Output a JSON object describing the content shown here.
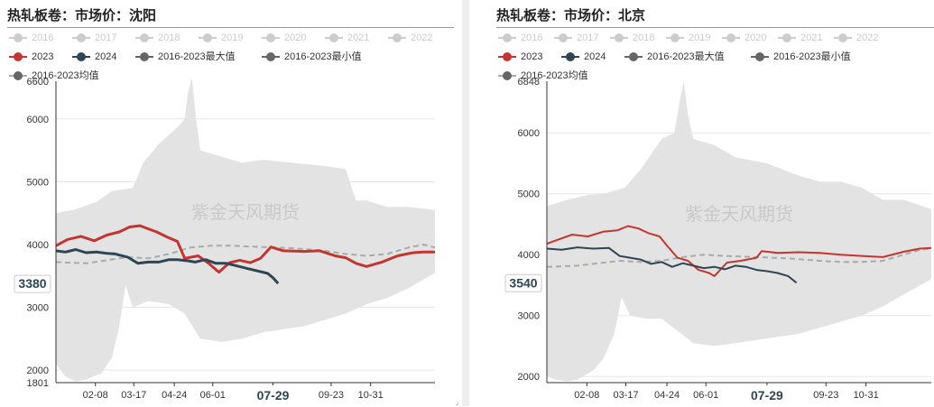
{
  "chart_data": [
    {
      "type": "line",
      "title": "热轧板卷：市场价：沈阳",
      "legend_position": "top",
      "legend_faded": [
        "2016",
        "2017",
        "2018",
        "2019",
        "2020",
        "2021",
        "2022"
      ],
      "legend_active": [
        "2023",
        "2024",
        "2016-2023最大值",
        "2016-2023最小值",
        "2016-2023均值"
      ],
      "xticks": [
        "02-08",
        "03-17",
        "04-24",
        "06-01",
        "07-29",
        "09-23",
        "10-31"
      ],
      "xlim": [
        1,
        366
      ],
      "ylim": [
        1801,
        6600
      ],
      "yticks": [
        2000,
        3000,
        4000,
        5000,
        6000
      ],
      "yaxis_min_label": "1801",
      "yaxis_max_label": "6600",
      "cursor_x_label": "07-29",
      "cursor_y_label": "3380",
      "watermark": "紫金天风期货",
      "grid": true,
      "series": [
        {
          "name": "2016-2023最大值",
          "color": "#e3e3e3",
          "points": [
            [
              1,
              4500
            ],
            [
              20,
              4560
            ],
            [
              40,
              4680
            ],
            [
              55,
              4850
            ],
            [
              75,
              4900
            ],
            [
              85,
              5300
            ],
            [
              100,
              5600
            ],
            [
              120,
              5900
            ],
            [
              125,
              6000
            ],
            [
              128,
              6400
            ],
            [
              132,
              6650
            ],
            [
              136,
              6000
            ],
            [
              140,
              5500
            ],
            [
              160,
              5400
            ],
            [
              180,
              5300
            ],
            [
              200,
              5350
            ],
            [
              230,
              5300
            ],
            [
              260,
              5250
            ],
            [
              280,
              5200
            ],
            [
              290,
              4700
            ],
            [
              300,
              4700
            ],
            [
              320,
              4600
            ],
            [
              340,
              4600
            ],
            [
              366,
              4550
            ]
          ]
        },
        {
          "name": "2016-2023最小值",
          "color": "#e3e3e3",
          "points": [
            [
              1,
              2100
            ],
            [
              10,
              1900
            ],
            [
              20,
              1820
            ],
            [
              30,
              1850
            ],
            [
              45,
              1950
            ],
            [
              55,
              2200
            ],
            [
              62,
              2700
            ],
            [
              68,
              3350
            ],
            [
              75,
              3000
            ],
            [
              90,
              3100
            ],
            [
              110,
              3050
            ],
            [
              125,
              2900
            ],
            [
              140,
              2500
            ],
            [
              160,
              2450
            ],
            [
              180,
              2500
            ],
            [
              200,
              2600
            ],
            [
              220,
              2650
            ],
            [
              240,
              2700
            ],
            [
              260,
              2800
            ],
            [
              280,
              2900
            ],
            [
              300,
              3050
            ],
            [
              320,
              3150
            ],
            [
              340,
              3300
            ],
            [
              366,
              3550
            ]
          ]
        },
        {
          "name": "2016-2023均值",
          "color": "#aaaaaa",
          "points": [
            [
              1,
              3720
            ],
            [
              30,
              3700
            ],
            [
              50,
              3750
            ],
            [
              70,
              3800
            ],
            [
              90,
              3780
            ],
            [
              110,
              3850
            ],
            [
              130,
              3950
            ],
            [
              150,
              3980
            ],
            [
              170,
              3980
            ],
            [
              200,
              3960
            ],
            [
              230,
              3940
            ],
            [
              260,
              3900
            ],
            [
              280,
              3850
            ],
            [
              300,
              3820
            ],
            [
              320,
              3850
            ],
            [
              340,
              3950
            ],
            [
              355,
              4000
            ],
            [
              366,
              3950
            ]
          ]
        },
        {
          "name": "2023",
          "color": "#c23531",
          "points": [
            [
              1,
              3980
            ],
            [
              12,
              4080
            ],
            [
              25,
              4130
            ],
            [
              38,
              4060
            ],
            [
              50,
              4150
            ],
            [
              62,
              4200
            ],
            [
              72,
              4280
            ],
            [
              82,
              4300
            ],
            [
              90,
              4250
            ],
            [
              98,
              4200
            ],
            [
              108,
              4120
            ],
            [
              118,
              4050
            ],
            [
              125,
              3780
            ],
            [
              138,
              3820
            ],
            [
              148,
              3700
            ],
            [
              155,
              3600
            ],
            [
              158,
              3560
            ],
            [
              168,
              3710
            ],
            [
              178,
              3750
            ],
            [
              188,
              3710
            ],
            [
              198,
              3780
            ],
            [
              208,
              3960
            ],
            [
              220,
              3900
            ],
            [
              240,
              3890
            ],
            [
              255,
              3900
            ],
            [
              270,
              3820
            ],
            [
              280,
              3790
            ],
            [
              290,
              3700
            ],
            [
              300,
              3650
            ],
            [
              315,
              3720
            ],
            [
              330,
              3820
            ],
            [
              345,
              3870
            ],
            [
              355,
              3880
            ],
            [
              366,
              3880
            ]
          ]
        },
        {
          "name": "2024",
          "color": "#2f4554",
          "points": [
            [
              1,
              3900
            ],
            [
              10,
              3880
            ],
            [
              20,
              3920
            ],
            [
              30,
              3870
            ],
            [
              40,
              3880
            ],
            [
              50,
              3860
            ],
            [
              58,
              3850
            ],
            [
              70,
              3800
            ],
            [
              80,
              3700
            ],
            [
              90,
              3720
            ],
            [
              100,
              3720
            ],
            [
              110,
              3760
            ],
            [
              118,
              3760
            ],
            [
              128,
              3740
            ],
            [
              135,
              3720
            ],
            [
              145,
              3760
            ],
            [
              155,
              3700
            ],
            [
              165,
              3700
            ],
            [
              175,
              3660
            ],
            [
              185,
              3620
            ],
            [
              195,
              3580
            ],
            [
              205,
              3540
            ],
            [
              210,
              3470
            ],
            [
              215,
              3380
            ]
          ]
        }
      ]
    },
    {
      "type": "line",
      "title": "热轧板卷：市场价：北京",
      "legend_position": "top",
      "legend_faded": [
        "2016",
        "2017",
        "2018",
        "2019",
        "2020",
        "2021",
        "2022"
      ],
      "legend_active": [
        "2023",
        "2024",
        "2016-2023最大值",
        "2016-2023最小值",
        "2016-2023均值"
      ],
      "xticks": [
        "02-08",
        "03-17",
        "04-24",
        "06-01",
        "07-29",
        "09-23",
        "10-31"
      ],
      "xlim": [
        1,
        366
      ],
      "ylim": [
        1900,
        6848
      ],
      "yticks": [
        2000,
        3000,
        4000,
        5000,
        6000
      ],
      "yaxis_max_label": "6848",
      "cursor_x_label": "07-29",
      "cursor_y_label": "3540",
      "watermark": "紫金天风期货",
      "grid": true,
      "series": [
        {
          "name": "2016-2023最大值",
          "color": "#e3e3e3",
          "points": [
            [
              1,
              4800
            ],
            [
              20,
              4900
            ],
            [
              40,
              4980
            ],
            [
              55,
              5000
            ],
            [
              75,
              5100
            ],
            [
              90,
              5400
            ],
            [
              110,
              5900
            ],
            [
              122,
              6000
            ],
            [
              127,
              6500
            ],
            [
              131,
              6850
            ],
            [
              135,
              6300
            ],
            [
              140,
              5900
            ],
            [
              160,
              5800
            ],
            [
              180,
              5600
            ],
            [
              210,
              5500
            ],
            [
              240,
              5300
            ],
            [
              260,
              5200
            ],
            [
              280,
              5200
            ],
            [
              300,
              5100
            ],
            [
              320,
              4900
            ],
            [
              340,
              4900
            ],
            [
              366,
              4750
            ]
          ]
        },
        {
          "name": "2016-2023最小值",
          "color": "#e3e3e3",
          "points": [
            [
              1,
              2000
            ],
            [
              10,
              1950
            ],
            [
              20,
              1920
            ],
            [
              30,
              1950
            ],
            [
              45,
              2100
            ],
            [
              55,
              2300
            ],
            [
              65,
              2700
            ],
            [
              72,
              3300
            ],
            [
              80,
              3000
            ],
            [
              95,
              2950
            ],
            [
              110,
              2950
            ],
            [
              125,
              2750
            ],
            [
              140,
              2550
            ],
            [
              160,
              2500
            ],
            [
              180,
              2550
            ],
            [
              200,
              2600
            ],
            [
              220,
              2650
            ],
            [
              240,
              2700
            ],
            [
              260,
              2800
            ],
            [
              280,
              2900
            ],
            [
              300,
              3000
            ],
            [
              320,
              3150
            ],
            [
              340,
              3350
            ],
            [
              366,
              3600
            ]
          ]
        },
        {
          "name": "2016-2023均值",
          "color": "#aaaaaa",
          "points": [
            [
              1,
              3800
            ],
            [
              30,
              3820
            ],
            [
              50,
              3860
            ],
            [
              70,
              3900
            ],
            [
              90,
              3880
            ],
            [
              110,
              3900
            ],
            [
              130,
              3960
            ],
            [
              150,
              4000
            ],
            [
              170,
              3980
            ],
            [
              200,
              3960
            ],
            [
              230,
              3940
            ],
            [
              260,
              3900
            ],
            [
              280,
              3880
            ],
            [
              300,
              3880
            ],
            [
              320,
              3900
            ],
            [
              340,
              4000
            ],
            [
              355,
              4080
            ],
            [
              366,
              4100
            ]
          ]
        },
        {
          "name": "2023",
          "color": "#c23531",
          "points": [
            [
              1,
              4180
            ],
            [
              12,
              4250
            ],
            [
              25,
              4330
            ],
            [
              40,
              4300
            ],
            [
              55,
              4380
            ],
            [
              68,
              4400
            ],
            [
              78,
              4470
            ],
            [
              88,
              4430
            ],
            [
              98,
              4350
            ],
            [
              108,
              4300
            ],
            [
              115,
              4150
            ],
            [
              125,
              3950
            ],
            [
              135,
              3900
            ],
            [
              145,
              3750
            ],
            [
              155,
              3700
            ],
            [
              160,
              3650
            ],
            [
              172,
              3870
            ],
            [
              185,
              3900
            ],
            [
              200,
              3950
            ],
            [
              205,
              4060
            ],
            [
              220,
              4030
            ],
            [
              240,
              4040
            ],
            [
              260,
              4030
            ],
            [
              280,
              4000
            ],
            [
              300,
              3980
            ],
            [
              320,
              3960
            ],
            [
              340,
              4050
            ],
            [
              355,
              4100
            ],
            [
              366,
              4110
            ]
          ]
        },
        {
          "name": "2024",
          "color": "#2f4554",
          "points": [
            [
              1,
              4100
            ],
            [
              15,
              4080
            ],
            [
              30,
              4120
            ],
            [
              45,
              4100
            ],
            [
              60,
              4110
            ],
            [
              70,
              3980
            ],
            [
              80,
              3950
            ],
            [
              90,
              3920
            ],
            [
              100,
              3850
            ],
            [
              110,
              3880
            ],
            [
              120,
              3800
            ],
            [
              130,
              3860
            ],
            [
              140,
              3820
            ],
            [
              150,
              3780
            ],
            [
              160,
              3800
            ],
            [
              170,
              3760
            ],
            [
              180,
              3820
            ],
            [
              190,
              3800
            ],
            [
              200,
              3750
            ],
            [
              210,
              3730
            ],
            [
              220,
              3700
            ],
            [
              230,
              3650
            ],
            [
              238,
              3540
            ]
          ]
        }
      ]
    }
  ]
}
